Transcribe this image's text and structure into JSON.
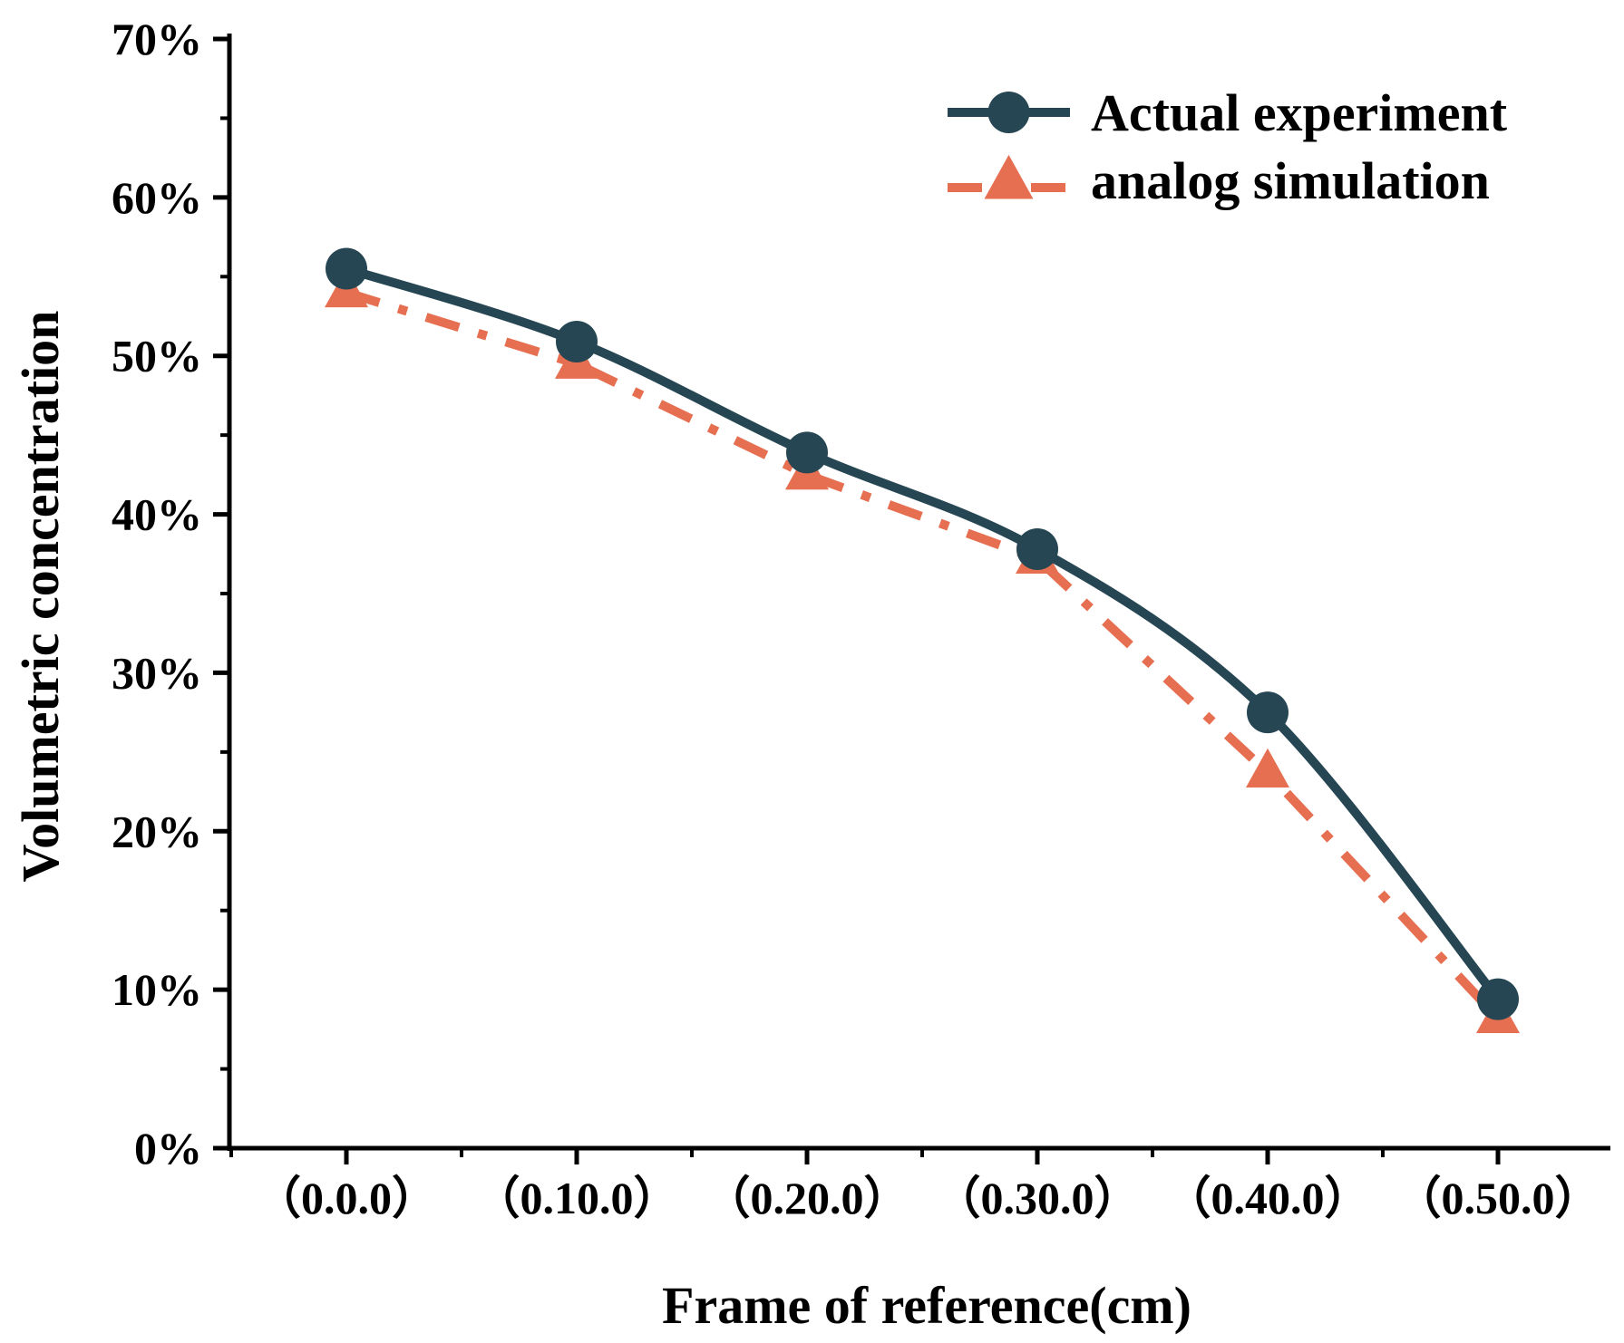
{
  "colors": {
    "actual": "#264653",
    "simulation": "#e76f51",
    "axis": "#000000",
    "background": "#ffffff"
  },
  "chart_data": {
    "type": "line",
    "title": "",
    "xlabel": "Frame of reference(cm)",
    "ylabel": "Volumetric concentration",
    "categories": [
      "（0.0.0）",
      "（0.10.0）",
      "（0.20.0）",
      "（0.30.0）",
      "（0.40.0）",
      "（0.50.0）"
    ],
    "ylim": [
      0,
      70
    ],
    "yticks": [
      0,
      10,
      20,
      30,
      40,
      50,
      60,
      70
    ],
    "ytick_labels": [
      "0%",
      "10%",
      "20%",
      "30%",
      "40%",
      "50%",
      "60%",
      "70%"
    ],
    "grid": false,
    "legend_position": "top-right",
    "series": [
      {
        "name": "Actual experiment",
        "values": [
          55.5,
          50.9,
          43.9,
          37.8,
          27.5,
          9.4
        ],
        "color": "#264653",
        "marker": "circle",
        "line_style": "solid-smooth"
      },
      {
        "name": "analog simulation",
        "values": [
          54.0,
          49.5,
          42.5,
          37.2,
          23.7,
          8.2
        ],
        "color": "#e76f51",
        "marker": "triangle",
        "line_style": "dash-dot"
      }
    ]
  }
}
